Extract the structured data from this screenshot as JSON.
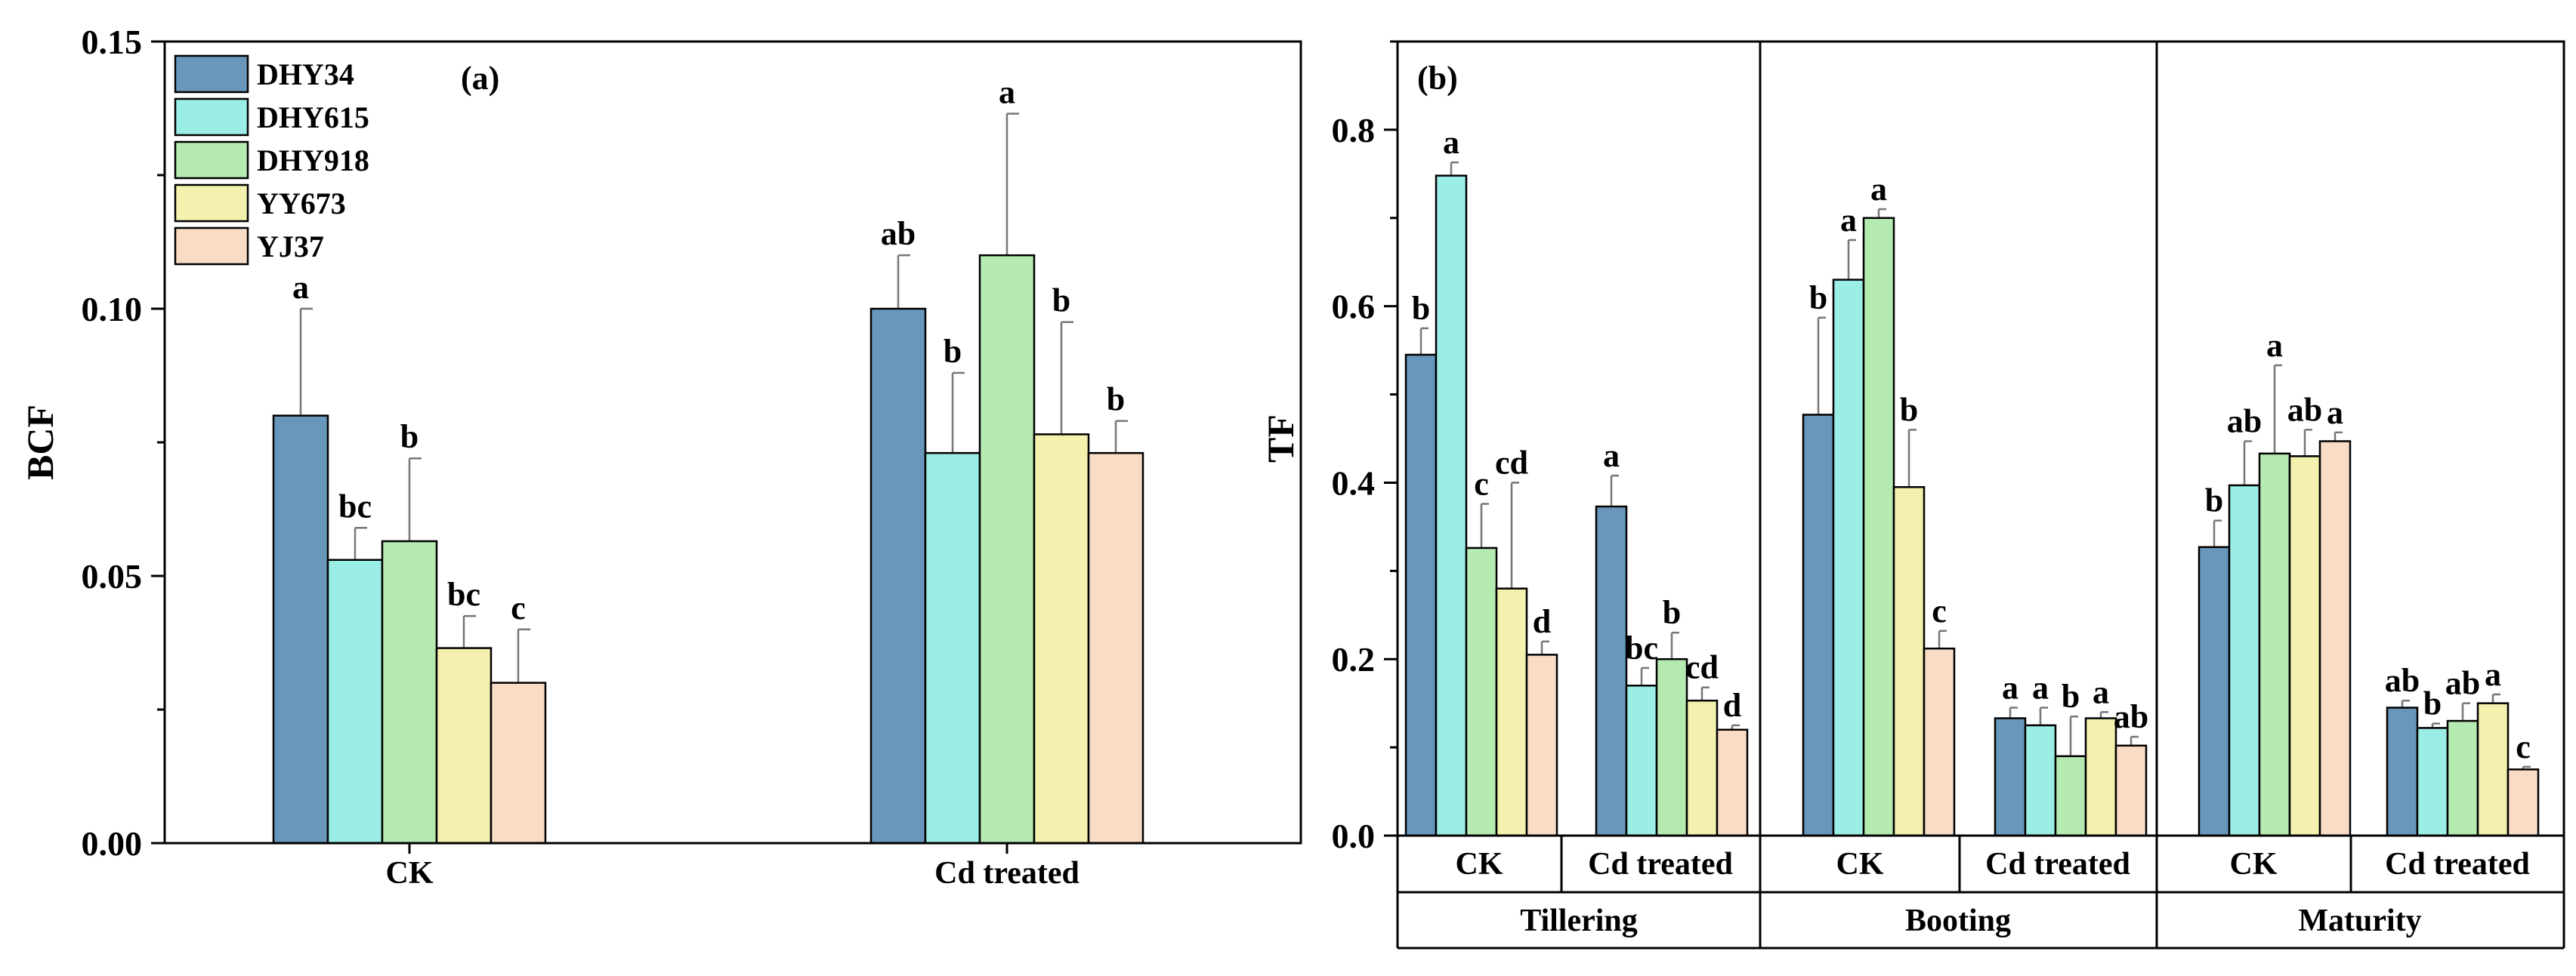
{
  "colors": {
    "DHY34": "#6897bb",
    "DHY615": "#9beee5",
    "DHY918": "#b5eab1",
    "YY673": "#f3f1ad",
    "YJ37": "#f9dcc6",
    "axis": "#000000",
    "errorbar": "#777777"
  },
  "chart_data": [
    {
      "type": "bar",
      "panel_label": "(a)",
      "ylabel": "BCF",
      "xlabel": "",
      "ylim": [
        0,
        0.15
      ],
      "yticks": [
        "0.00",
        "0.05",
        "0.10",
        "0.15"
      ],
      "legend_position": "top-left",
      "categories": [
        "CK",
        "Cd treated"
      ],
      "series": [
        {
          "name": "DHY34",
          "values": [
            0.08,
            0.1
          ],
          "errors": [
            0.02,
            0.01
          ],
          "letters": [
            "a",
            "ab"
          ]
        },
        {
          "name": "DHY615",
          "values": [
            0.053,
            0.073
          ],
          "errors": [
            0.006,
            0.015
          ],
          "letters": [
            "bc",
            "b"
          ]
        },
        {
          "name": "DHY918",
          "values": [
            0.0565,
            0.11
          ],
          "errors": [
            0.0155,
            0.0265
          ],
          "letters": [
            "b",
            "a"
          ]
        },
        {
          "name": "YY673",
          "values": [
            0.0365,
            0.0765
          ],
          "errors": [
            0.006,
            0.021
          ],
          "letters": [
            "bc",
            "b"
          ]
        },
        {
          "name": "YJ37",
          "values": [
            0.03,
            0.073
          ],
          "errors": [
            0.01,
            0.006
          ],
          "letters": [
            "c",
            "b"
          ]
        }
      ]
    },
    {
      "type": "bar",
      "panel_label": "(b)",
      "ylabel": "TF",
      "ylim": [
        0,
        0.9
      ],
      "yticks": [
        "0.0",
        "0.2",
        "0.4",
        "0.6",
        "0.8"
      ],
      "treatments": [
        "CK",
        "Cd treated"
      ],
      "stages": [
        "Tillering",
        "Booting",
        "Maturity"
      ],
      "series": [
        {
          "name": "DHY34",
          "values": [
            0.545,
            0.373,
            0.477,
            0.133,
            0.327,
            0.145
          ],
          "errors": [
            0.03,
            0.035,
            0.11,
            0.012,
            0.03,
            0.008
          ],
          "letters": [
            "b",
            "a",
            "b",
            "a",
            "b",
            "ab"
          ]
        },
        {
          "name": "DHY615",
          "values": [
            0.748,
            0.17,
            0.63,
            0.125,
            0.397,
            0.122
          ],
          "errors": [
            0.015,
            0.02,
            0.045,
            0.02,
            0.05,
            0.005
          ],
          "letters": [
            "a",
            "bc",
            "a",
            "a",
            "ab",
            "b"
          ]
        },
        {
          "name": "DHY918",
          "values": [
            0.326,
            0.2,
            0.7,
            0.09,
            0.433,
            0.13
          ],
          "errors": [
            0.05,
            0.03,
            0.01,
            0.045,
            0.1,
            0.02
          ],
          "letters": [
            "c",
            "b",
            "a",
            "b",
            "a",
            "ab"
          ]
        },
        {
          "name": "YY673",
          "values": [
            0.28,
            0.153,
            0.395,
            0.133,
            0.43,
            0.15
          ],
          "errors": [
            0.12,
            0.015,
            0.065,
            0.007,
            0.03,
            0.01
          ],
          "letters": [
            "cd",
            "cd",
            "b",
            "a",
            "ab",
            "a"
          ]
        },
        {
          "name": "YJ37",
          "values": [
            0.205,
            0.12,
            0.212,
            0.102,
            0.447,
            0.075
          ],
          "errors": [
            0.015,
            0.005,
            0.02,
            0.01,
            0.01,
            0.003
          ],
          "letters": [
            "d",
            "d",
            "c",
            "ab",
            "a",
            "c"
          ]
        }
      ]
    }
  ]
}
